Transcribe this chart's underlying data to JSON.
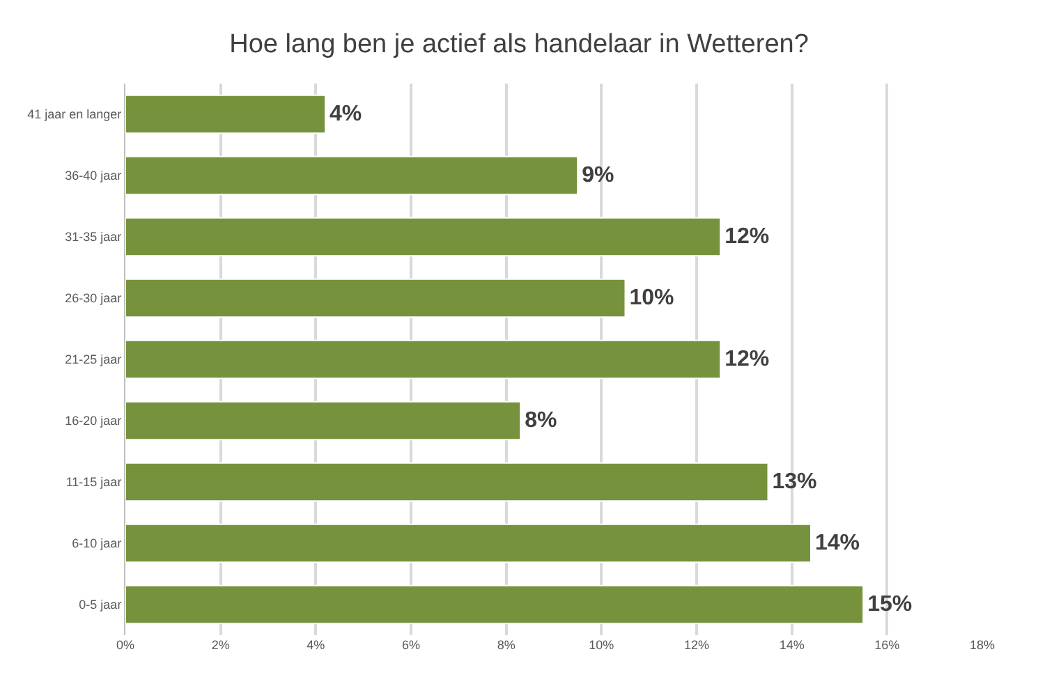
{
  "chart_data": {
    "type": "bar",
    "orientation": "horizontal",
    "title": "Hoe lang ben je actief als handelaar in Wetteren?",
    "categories": [
      "41 jaar en langer",
      "36-40 jaar",
      "31-35 jaar",
      "26-30 jaar",
      "21-25 jaar",
      "16-20 jaar",
      "11-15 jaar",
      "6-10 jaar",
      "0-5 jaar"
    ],
    "values": [
      4.2,
      9.5,
      12.5,
      10.5,
      12.5,
      8.3,
      13.5,
      14.4,
      15.5
    ],
    "value_labels": [
      "4%",
      "9%",
      "12%",
      "10%",
      "12%",
      "8%",
      "13%",
      "14%",
      "15%"
    ],
    "color": "#76923c",
    "xlim": [
      0,
      18
    ],
    "xticks": [
      {
        "value": 0,
        "label": "0%"
      },
      {
        "value": 2,
        "label": "2%"
      },
      {
        "value": 4,
        "label": "4%"
      },
      {
        "value": 6,
        "label": "6%"
      },
      {
        "value": 8,
        "label": "8%"
      },
      {
        "value": 10,
        "label": "10%"
      },
      {
        "value": 12,
        "label": "12%"
      },
      {
        "value": 14,
        "label": "14%"
      },
      {
        "value": 16,
        "label": "16%"
      },
      {
        "value": 18,
        "label": "18%"
      }
    ],
    "grid": "x"
  }
}
